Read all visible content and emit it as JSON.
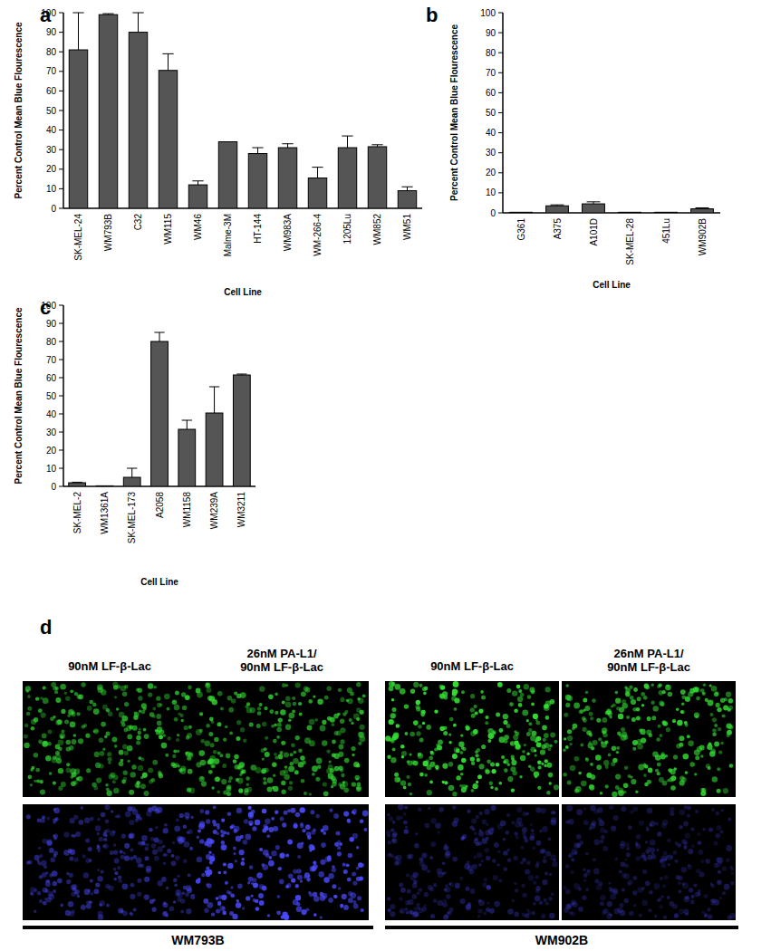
{
  "chart_data": [
    {
      "type": "bar",
      "annotations": [
        "a"
      ],
      "x_label": "Cell Line",
      "y_label": "Percent Control  Mean Blue Flourescence",
      "categories": [
        "SK-MEL-24",
        "WM793B",
        "C32",
        "WM115",
        "WM46",
        "Malme-3M",
        "HT-144",
        "WM983A",
        "WM-266-4",
        "1205Lu",
        "WM852",
        "WM51"
      ],
      "values": [
        81,
        99,
        90,
        70.5,
        12,
        34,
        28,
        31,
        15.5,
        31,
        31.5,
        9
      ],
      "errors": [
        19,
        0.5,
        10,
        8.5,
        2,
        0,
        3,
        2,
        5.5,
        6,
        1,
        2
      ],
      "color": "#555555",
      "ylim": [
        0,
        100
      ],
      "yticks": [
        0,
        10,
        20,
        30,
        40,
        50,
        60,
        70,
        80,
        90,
        100
      ],
      "grid": false
    },
    {
      "type": "bar",
      "annotations": [
        "b"
      ],
      "x_label": "Cell Line",
      "y_label": "Percent Control  Mean Blue Flourescence",
      "categories": [
        "G361",
        "A375",
        "A101D",
        "SK-MEL-28",
        "451Lu",
        "WM902B"
      ],
      "values": [
        0.3,
        3.5,
        4.5,
        0.3,
        0.3,
        2
      ],
      "errors": [
        0,
        0.5,
        1,
        0,
        0,
        0.5
      ],
      "color": "#555555",
      "ylim": [
        0,
        100
      ],
      "yticks": [
        0,
        10,
        20,
        30,
        40,
        50,
        60,
        70,
        80,
        90,
        100
      ],
      "grid": false
    },
    {
      "type": "bar",
      "annotations": [
        "c"
      ],
      "x_label": "Cell Line",
      "y_label": "Percent Control  Mean Blue Flourescence",
      "categories": [
        "SK-MEL-2",
        "WM1361A",
        "SK-MEL-173",
        "A2058",
        "WM1158",
        "WM239A",
        "WM3211"
      ],
      "values": [
        2,
        0.3,
        5,
        80,
        31.5,
        40.5,
        61.5
      ],
      "errors": [
        0.3,
        0,
        5,
        5,
        5,
        14.5,
        0.5
      ],
      "color": "#555555",
      "ylim": [
        0,
        100
      ],
      "yticks": [
        0,
        10,
        20,
        30,
        40,
        50,
        60,
        70,
        80,
        90,
        100
      ],
      "grid": false
    }
  ],
  "image_panel": {
    "annotations": [
      "d"
    ],
    "columns": [
      {
        "header": [
          "90nM LF-β-Lac"
        ]
      },
      {
        "header": [
          "26nM PA-L1/",
          "90nM LF-β-Lac"
        ]
      },
      {
        "header": [
          "90nM LF-β-Lac"
        ]
      },
      {
        "header": [
          "26nM PA-L1/",
          "90nM LF-β-Lac"
        ]
      }
    ],
    "groups": [
      "WM793B",
      "WM902B"
    ]
  }
}
